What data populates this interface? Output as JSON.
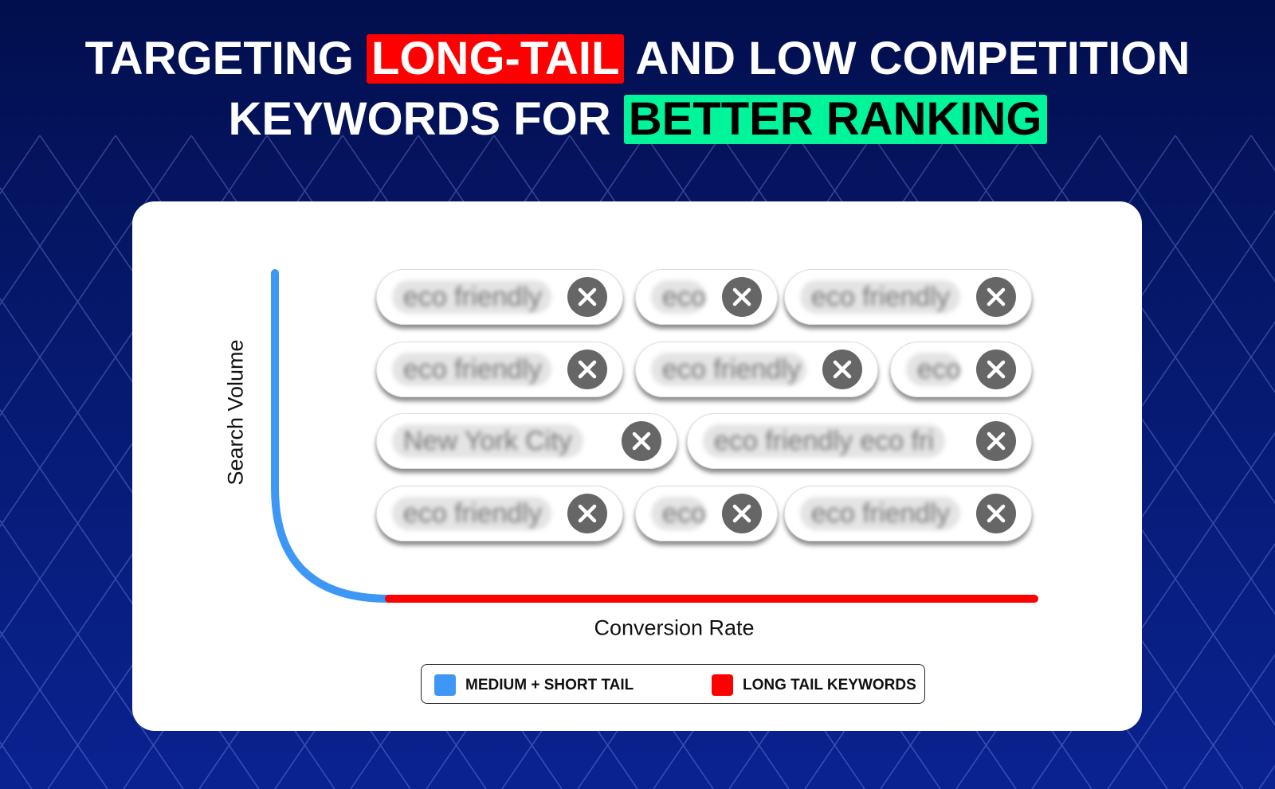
{
  "title": {
    "line1_pre": "TARGETING",
    "line1_highlight": "LONG-TAIL",
    "line1_post": "AND LOW COMPETITION",
    "line2_pre": "KEYWORDS FOR",
    "line2_highlight": "BETTER RANKING"
  },
  "colors": {
    "background": "#041660",
    "highlight_red": "#ff0000",
    "highlight_green": "#00f59b",
    "short_tail": "#3d97f5",
    "long_tail": "#ff0000",
    "remove_icon": "#666666"
  },
  "diagram": {
    "y_label": "Search Volume",
    "x_label": "Conversion Rate",
    "chips": [
      [
        "eco friendly",
        "eco",
        "eco friendly"
      ],
      [
        "eco friendly",
        "eco friendly",
        "eco"
      ],
      [
        "New York City",
        "eco friendly eco fri"
      ],
      [
        "eco friendly",
        "eco",
        "eco friendly"
      ]
    ],
    "chip_icon": "close-circle-icon"
  },
  "legend": [
    {
      "label": "MEDIUM + SHORT TAIL",
      "color": "#3d97f5"
    },
    {
      "label": "LONG TAIL KEYWORDS",
      "color": "#ff0000"
    }
  ]
}
